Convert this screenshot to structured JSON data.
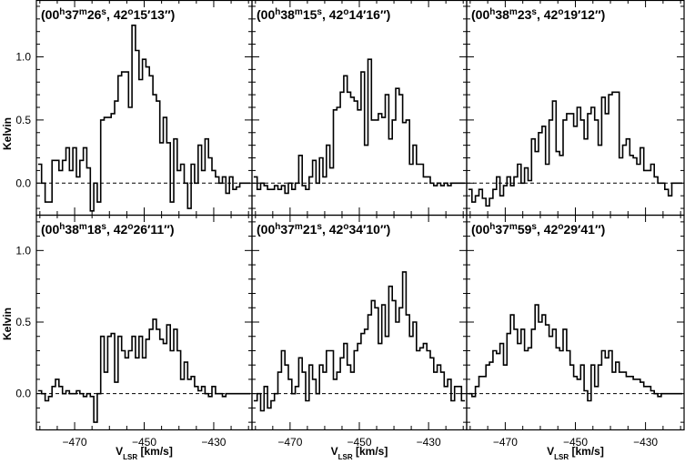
{
  "figure": {
    "ylabel": "Kelvin",
    "xlabel_main": "V",
    "xlabel_sub": "LSR",
    "xlabel_units": "[km/s]",
    "x_ticks": [
      -470,
      -450,
      -430
    ],
    "y_ticks": [
      "0.0",
      "0.5",
      "1.0"
    ],
    "x_range": [
      -481,
      -419
    ],
    "y_range_top": [
      -0.25,
      1.45
    ],
    "y_range_bottom": [
      -0.25,
      1.25
    ],
    "zero_line": "dashed",
    "line_color": "#000000"
  },
  "chart_data": [
    {
      "type": "line",
      "step": true,
      "title": {
        "ra_h": "00",
        "ra_m": "37",
        "ra_s": "26",
        "dec_d": "42",
        "dec_m": "15",
        "dec_s": "13"
      },
      "x": [
        -480,
        -479,
        -478,
        -477,
        -476,
        -475,
        -474,
        -473,
        -472,
        -471,
        -470,
        -469,
        -468,
        -467,
        -466,
        -465,
        -464,
        -463,
        -462,
        -461,
        -460,
        -459,
        -458,
        -457,
        -456,
        -455,
        -454,
        -453,
        -452,
        -451,
        -450,
        -449,
        -448,
        -447,
        -446,
        -445,
        -444,
        -443,
        -442,
        -441,
        -440,
        -439,
        -438,
        -437,
        -436,
        -435,
        -434,
        -433,
        -432,
        -431,
        -430,
        -429,
        -428,
        -427,
        -426,
        -425,
        -424,
        -423,
        -422,
        -421,
        -420
      ],
      "y": [
        0.15,
        0.0,
        -0.15,
        -0.15,
        0.18,
        0.18,
        0.1,
        0.18,
        0.28,
        0.1,
        0.28,
        0.05,
        0.18,
        0.28,
        0.12,
        -0.22,
        0.0,
        -0.15,
        0.5,
        0.52,
        0.52,
        0.55,
        0.65,
        0.85,
        0.88,
        0.88,
        0.6,
        1.25,
        1.05,
        0.82,
        0.98,
        0.92,
        0.85,
        0.7,
        0.65,
        0.32,
        0.52,
        0.32,
        -0.15,
        0.35,
        0.1,
        0.15,
        0.0,
        -0.2,
        0.15,
        0.0,
        0.3,
        0.1,
        0.35,
        0.2,
        0.1,
        0.05,
        0.0,
        0.05,
        -0.08,
        0.05,
        -0.05,
        -0.03,
        0.0,
        0.0,
        0.0
      ]
    },
    {
      "type": "line",
      "step": true,
      "title": {
        "ra_h": "00",
        "ra_m": "38",
        "ra_s": "15",
        "dec_d": "42",
        "dec_m": "14",
        "dec_s": "16"
      },
      "x": [
        -480,
        -479,
        -478,
        -477,
        -476,
        -475,
        -474,
        -473,
        -472,
        -471,
        -470,
        -469,
        -468,
        -467,
        -466,
        -465,
        -464,
        -463,
        -462,
        -461,
        -460,
        -459,
        -458,
        -457,
        -456,
        -455,
        -454,
        -453,
        -452,
        -451,
        -450,
        -449,
        -448,
        -447,
        -446,
        -445,
        -444,
        -443,
        -442,
        -441,
        -440,
        -439,
        -438,
        -437,
        -436,
        -435,
        -434,
        -433,
        -432,
        -431,
        -430,
        -429,
        -428,
        -427,
        -426,
        -425,
        -424,
        -423,
        -422,
        -421,
        -420
      ],
      "y": [
        0.05,
        -0.05,
        0.0,
        -0.02,
        -0.05,
        -0.05,
        -0.02,
        -0.05,
        -0.02,
        -0.08,
        0.0,
        -0.05,
        0.0,
        0.22,
        -0.02,
        -0.05,
        0.05,
        0.18,
        0.0,
        0.2,
        0.05,
        0.3,
        0.12,
        0.58,
        0.6,
        0.72,
        0.85,
        0.72,
        0.68,
        0.65,
        0.58,
        0.88,
        0.3,
        0.98,
        0.5,
        0.5,
        0.55,
        0.52,
        0.7,
        0.35,
        0.5,
        0.75,
        0.7,
        0.48,
        0.5,
        0.15,
        0.3,
        0.15,
        0.15,
        0.05,
        0.05,
        0.0,
        -0.02,
        0.0,
        -0.02,
        0.0,
        -0.02,
        0.0,
        0.0,
        0.0,
        0.0
      ]
    },
    {
      "type": "line",
      "step": true,
      "title": {
        "ra_h": "00",
        "ra_m": "38",
        "ra_s": "23",
        "dec_d": "42",
        "dec_m": "19",
        "dec_s": "12"
      },
      "x": [
        -480,
        -479,
        -478,
        -477,
        -476,
        -475,
        -474,
        -473,
        -472,
        -471,
        -470,
        -469,
        -468,
        -467,
        -466,
        -465,
        -464,
        -463,
        -462,
        -461,
        -460,
        -459,
        -458,
        -457,
        -456,
        -455,
        -454,
        -453,
        -452,
        -451,
        -450,
        -449,
        -448,
        -447,
        -446,
        -445,
        -444,
        -443,
        -442,
        -441,
        -440,
        -439,
        -438,
        -437,
        -436,
        -435,
        -434,
        -433,
        -432,
        -431,
        -430,
        -429,
        -428,
        -427,
        -426,
        -425,
        -424,
        -423,
        -422,
        -421,
        -420
      ],
      "y": [
        -0.05,
        -0.15,
        -0.1,
        -0.05,
        -0.12,
        -0.18,
        -0.12,
        -0.05,
        0.05,
        -0.1,
        -0.02,
        0.05,
        -0.02,
        0.05,
        0.15,
        0.0,
        0.12,
        0.02,
        0.35,
        0.25,
        0.4,
        0.45,
        0.15,
        0.5,
        0.65,
        0.25,
        0.22,
        0.5,
        0.55,
        0.55,
        0.45,
        0.6,
        0.5,
        0.35,
        0.55,
        0.6,
        0.5,
        0.3,
        0.68,
        0.55,
        0.7,
        0.72,
        0.72,
        0.2,
        0.3,
        0.35,
        0.22,
        0.2,
        0.15,
        0.28,
        0.1,
        0.1,
        0.15,
        0.05,
        0.0,
        0.0,
        -0.05,
        -0.1,
        0.0,
        0.0,
        0.0
      ]
    },
    {
      "type": "line",
      "step": true,
      "title": {
        "ra_h": "00",
        "ra_m": "38",
        "ra_s": "18",
        "dec_d": "42",
        "dec_m": "26",
        "dec_s": "11"
      },
      "x": [
        -480,
        -479,
        -478,
        -477,
        -476,
        -475,
        -474,
        -473,
        -472,
        -471,
        -470,
        -469,
        -468,
        -467,
        -466,
        -465,
        -464,
        -463,
        -462,
        -461,
        -460,
        -459,
        -458,
        -457,
        -456,
        -455,
        -454,
        -453,
        -452,
        -451,
        -450,
        -449,
        -448,
        -447,
        -446,
        -445,
        -444,
        -443,
        -442,
        -441,
        -440,
        -439,
        -438,
        -437,
        -436,
        -435,
        -434,
        -433,
        -432,
        -431,
        -430,
        -429,
        -428,
        -427,
        -426,
        -425,
        -424,
        -423,
        -422,
        -421,
        -420
      ],
      "y": [
        0.02,
        0.0,
        -0.05,
        -0.02,
        0.05,
        0.1,
        0.05,
        0.0,
        0.02,
        0.0,
        0.0,
        0.02,
        0.0,
        -0.02,
        0.0,
        -0.02,
        -0.2,
        0.0,
        0.4,
        0.15,
        0.4,
        0.42,
        0.08,
        0.4,
        0.3,
        0.25,
        0.3,
        0.4,
        0.25,
        0.4,
        0.25,
        0.38,
        0.45,
        0.52,
        0.45,
        0.38,
        0.35,
        0.48,
        0.3,
        0.45,
        0.3,
        0.1,
        0.22,
        0.1,
        0.12,
        0.05,
        0.02,
        0.05,
        0.0,
        -0.02,
        0.05,
        0.0,
        0.0,
        -0.02,
        0.0,
        0.0,
        0.0,
        0.0,
        0.0,
        0.0,
        0.0
      ]
    },
    {
      "type": "line",
      "step": true,
      "title": {
        "ra_h": "00",
        "ra_m": "37",
        "ra_s": "21",
        "dec_d": "42",
        "dec_m": "34",
        "dec_s": "10"
      },
      "x": [
        -480,
        -479,
        -478,
        -477,
        -476,
        -475,
        -474,
        -473,
        -472,
        -471,
        -470,
        -469,
        -468,
        -467,
        -466,
        -465,
        -464,
        -463,
        -462,
        -461,
        -460,
        -459,
        -458,
        -457,
        -456,
        -455,
        -454,
        -453,
        -452,
        -451,
        -450,
        -449,
        -448,
        -447,
        -446,
        -445,
        -444,
        -443,
        -442,
        -441,
        -440,
        -439,
        -438,
        -437,
        -436,
        -435,
        -434,
        -433,
        -432,
        -431,
        -430,
        -429,
        -428,
        -427,
        -426,
        -425,
        -424,
        -423,
        -422,
        -421,
        -420
      ],
      "y": [
        -0.05,
        0.0,
        -0.12,
        0.05,
        -0.1,
        -0.05,
        0.0,
        0.15,
        0.3,
        0.2,
        0.1,
        0.0,
        0.05,
        0.25,
        0.15,
        -0.05,
        0.2,
        0.1,
        0.0,
        0.2,
        0.15,
        0.3,
        0.3,
        0.1,
        0.15,
        0.25,
        0.35,
        0.2,
        0.15,
        0.3,
        0.35,
        0.42,
        0.45,
        0.55,
        0.65,
        0.6,
        0.35,
        0.62,
        0.4,
        0.75,
        0.65,
        0.5,
        0.6,
        0.85,
        0.55,
        0.4,
        0.5,
        0.3,
        0.32,
        0.35,
        0.3,
        0.25,
        0.15,
        0.2,
        0.15,
        0.05,
        0.1,
        -0.05,
        0.05,
        0.05,
        -0.05
      ]
    },
    {
      "type": "line",
      "step": true,
      "title": {
        "ra_h": "00",
        "ra_m": "37",
        "ra_s": "59",
        "dec_d": "42",
        "dec_m": "29",
        "dec_s": "41"
      },
      "x": [
        -480,
        -479,
        -478,
        -477,
        -476,
        -475,
        -474,
        -473,
        -472,
        -471,
        -470,
        -469,
        -468,
        -467,
        -466,
        -465,
        -464,
        -463,
        -462,
        -461,
        -460,
        -459,
        -458,
        -457,
        -456,
        -455,
        -454,
        -453,
        -452,
        -451,
        -450,
        -449,
        -448,
        -447,
        -446,
        -445,
        -444,
        -443,
        -442,
        -441,
        -440,
        -439,
        -438,
        -437,
        -436,
        -435,
        -434,
        -433,
        -432,
        -431,
        -430,
        -429,
        -428,
        -427,
        -426,
        -425,
        -424,
        -423,
        -422,
        -421,
        -420
      ],
      "y": [
        0.0,
        -0.02,
        0.05,
        0.12,
        0.12,
        0.2,
        0.22,
        0.3,
        0.28,
        0.35,
        0.2,
        0.42,
        0.55,
        0.45,
        0.35,
        0.45,
        0.3,
        0.32,
        0.45,
        0.62,
        0.5,
        0.55,
        0.48,
        0.4,
        0.45,
        0.32,
        0.3,
        0.45,
        0.3,
        0.2,
        0.12,
        0.1,
        0.2,
        0.02,
        -0.05,
        0.2,
        0.05,
        0.2,
        0.3,
        0.25,
        0.3,
        0.15,
        0.22,
        0.15,
        0.15,
        0.12,
        0.12,
        0.1,
        0.1,
        0.08,
        0.05,
        0.05,
        0.02,
        0.0,
        -0.02,
        0.0,
        0.0,
        0.0,
        0.0,
        0.0,
        0.0
      ]
    }
  ]
}
